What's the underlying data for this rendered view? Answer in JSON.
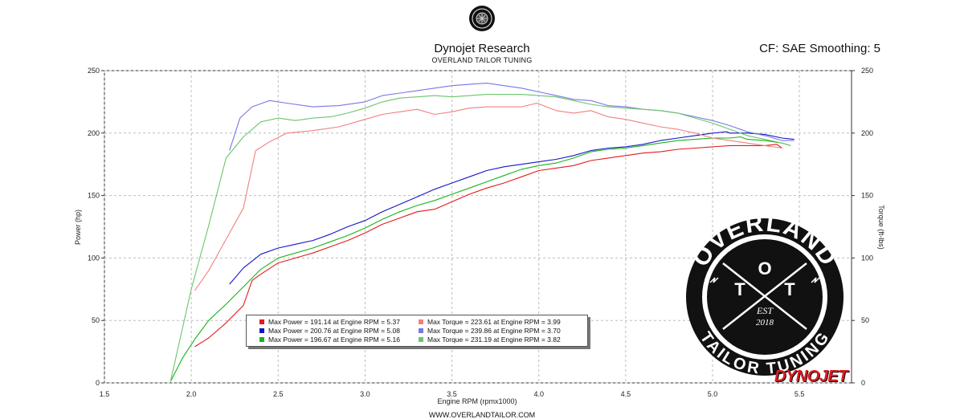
{
  "header": {
    "title": "Dynojet Research",
    "subtitle": "OVERLAND TAILOR TUNING",
    "cf_text": "CF: SAE Smoothing: 5"
  },
  "footer": {
    "website": "WWW.OVERLANDTAILOR.COM"
  },
  "logo": {
    "name": "OVERLAND",
    "initials_top": "O",
    "initials_left": "T",
    "initials_right": "T",
    "est": "EST",
    "year": "2018",
    "tagline": "TAILOR TUNING"
  },
  "brand_mark": "DYNOJET",
  "colors": {
    "run1_power": "#e41a1c",
    "run1_torque": "#f08080",
    "run2_power": "#1515c8",
    "run2_torque": "#7777e6",
    "run3_power": "#18b418",
    "run3_torque": "#6cc46c"
  },
  "legend": [
    {
      "text": "Max Power = 191.14 at Engine RPM = 5.37",
      "color": "#e41a1c"
    },
    {
      "text": "Max Power = 200.76 at Engine RPM = 5.08",
      "color": "#1515c8"
    },
    {
      "text": "Max Power = 196.67 at Engine RPM = 5.16",
      "color": "#18b418"
    },
    {
      "text": "Max Torque = 223.61 at Engine RPM = 3.99",
      "color": "#f08080"
    },
    {
      "text": "Max Torque = 239.86 at Engine RPM = 3.70",
      "color": "#7777e6"
    },
    {
      "text": "Max Torque = 231.19 at Engine RPM = 3.82",
      "color": "#6cc46c"
    }
  ],
  "chart_data": {
    "type": "line",
    "xlabel": "Engine RPM (rpmx1000)",
    "ylabel_left": "Power (hp)",
    "ylabel_right": "Torque (ft-lbs)",
    "xlim": [
      1.5,
      5.8
    ],
    "ylim": [
      0,
      250
    ],
    "x_ticks": [
      "1.5",
      "2.0",
      "2.5",
      "3.0",
      "3.5",
      "4.0",
      "4.5",
      "5.0",
      "5.5"
    ],
    "y_ticks": [
      "0",
      "50",
      "100",
      "150",
      "200",
      "250"
    ],
    "grid": true,
    "series": [
      {
        "color_key": "run1_power",
        "x": [
          2.02,
          2.1,
          2.2,
          2.3,
          2.35,
          2.4,
          2.5,
          2.6,
          2.7,
          2.8,
          2.9,
          3.0,
          3.1,
          3.2,
          3.3,
          3.4,
          3.5,
          3.6,
          3.7,
          3.8,
          3.9,
          4.0,
          4.1,
          4.2,
          4.3,
          4.4,
          4.5,
          4.6,
          4.7,
          4.8,
          4.9,
          5.0,
          5.1,
          5.2,
          5.3,
          5.37,
          5.4
        ],
        "y": [
          29,
          36,
          48,
          62,
          82,
          87,
          96,
          100,
          104,
          109,
          114,
          120,
          127,
          132,
          137,
          139,
          145,
          151,
          156,
          160,
          165,
          170,
          172,
          174,
          178,
          180,
          182,
          184,
          185,
          187,
          188,
          189,
          190,
          190,
          190,
          191,
          188
        ]
      },
      {
        "color_key": "run2_power",
        "x": [
          2.22,
          2.3,
          2.4,
          2.5,
          2.6,
          2.7,
          2.8,
          2.9,
          3.0,
          3.1,
          3.2,
          3.3,
          3.4,
          3.5,
          3.6,
          3.7,
          3.8,
          3.9,
          4.0,
          4.1,
          4.2,
          4.3,
          4.4,
          4.5,
          4.6,
          4.7,
          4.8,
          4.9,
          5.0,
          5.08,
          5.1,
          5.2,
          5.3,
          5.4,
          5.47
        ],
        "y": [
          79,
          92,
          103,
          108,
          111,
          114,
          119,
          125,
          130,
          137,
          143,
          149,
          155,
          160,
          165,
          170,
          173,
          175,
          177,
          179,
          182,
          186,
          188,
          189,
          191,
          194,
          196,
          198,
          200,
          201,
          200,
          200,
          199,
          196,
          195
        ]
      },
      {
        "color_key": "run3_power",
        "x": [
          1.88,
          1.95,
          2.02,
          2.1,
          2.2,
          2.3,
          2.4,
          2.5,
          2.6,
          2.7,
          2.8,
          2.9,
          3.0,
          3.1,
          3.2,
          3.3,
          3.4,
          3.5,
          3.6,
          3.7,
          3.8,
          3.9,
          4.0,
          4.1,
          4.2,
          4.3,
          4.4,
          4.5,
          4.6,
          4.7,
          4.8,
          4.9,
          5.0,
          5.1,
          5.16,
          5.2,
          5.3,
          5.4,
          5.45
        ],
        "y": [
          1,
          20,
          35,
          50,
          63,
          77,
          91,
          100,
          104,
          108,
          113,
          118,
          124,
          131,
          137,
          142,
          146,
          151,
          156,
          161,
          166,
          171,
          174,
          176,
          180,
          185,
          187,
          188,
          190,
          192,
          194,
          195,
          196,
          196,
          197,
          195,
          194,
          192,
          190
        ]
      },
      {
        "color_key": "run1_torque",
        "x": [
          2.02,
          2.1,
          2.2,
          2.3,
          2.37,
          2.45,
          2.55,
          2.7,
          2.85,
          3.0,
          3.1,
          3.2,
          3.3,
          3.4,
          3.5,
          3.6,
          3.7,
          3.8,
          3.9,
          3.99,
          4.1,
          4.2,
          4.3,
          4.4,
          4.5,
          4.6,
          4.7,
          4.8,
          4.9,
          5.0,
          5.1,
          5.2,
          5.3,
          5.4
        ],
        "y": [
          74,
          90,
          115,
          140,
          186,
          193,
          200,
          202,
          205,
          211,
          215,
          217,
          219,
          215,
          217,
          220,
          221,
          221,
          221,
          224,
          218,
          216,
          218,
          213,
          211,
          208,
          205,
          203,
          200,
          196,
          194,
          192,
          190,
          188
        ]
      },
      {
        "color_key": "run2_torque",
        "x": [
          2.22,
          2.28,
          2.35,
          2.45,
          2.55,
          2.7,
          2.85,
          3.0,
          3.1,
          3.2,
          3.3,
          3.4,
          3.5,
          3.6,
          3.7,
          3.8,
          3.9,
          4.0,
          4.1,
          4.2,
          4.3,
          4.4,
          4.5,
          4.6,
          4.7,
          4.8,
          4.9,
          5.0,
          5.1,
          5.2,
          5.3,
          5.4,
          5.47
        ],
        "y": [
          186,
          212,
          221,
          226,
          224,
          221,
          222,
          225,
          230,
          232,
          234,
          236,
          238,
          239,
          240,
          238,
          236,
          233,
          230,
          227,
          226,
          222,
          221,
          219,
          218,
          216,
          213,
          210,
          206,
          201,
          198,
          194,
          194
        ]
      },
      {
        "color_key": "run3_torque",
        "x": [
          1.88,
          2.0,
          2.1,
          2.2,
          2.3,
          2.4,
          2.5,
          2.6,
          2.7,
          2.8,
          2.9,
          3.0,
          3.1,
          3.2,
          3.3,
          3.4,
          3.5,
          3.6,
          3.7,
          3.82,
          3.9,
          4.0,
          4.1,
          4.2,
          4.3,
          4.4,
          4.5,
          4.6,
          4.7,
          4.8,
          4.9,
          5.0,
          5.1,
          5.2,
          5.3,
          5.4,
          5.45
        ],
        "y": [
          1,
          75,
          126,
          180,
          197,
          209,
          212,
          210,
          212,
          213,
          216,
          220,
          225,
          228,
          229,
          230,
          229,
          230,
          231,
          231,
          231,
          230,
          229,
          226,
          223,
          221,
          220,
          219,
          218,
          216,
          212,
          208,
          203,
          198,
          195,
          192,
          190
        ]
      }
    ]
  }
}
